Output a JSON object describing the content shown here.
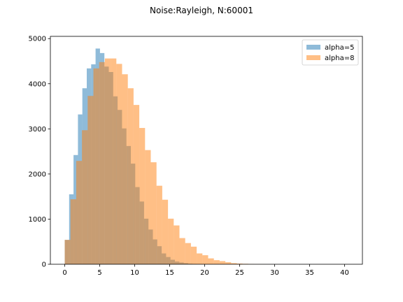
{
  "chart_data": {
    "type": "histogram",
    "title": "Noise:Rayleigh, N:60001",
    "xlabel": "",
    "ylabel": "",
    "xlim": [
      -2.05,
      42.55
    ],
    "ylim": [
      0,
      5050
    ],
    "xticks": [
      0,
      5,
      10,
      15,
      20,
      25,
      30,
      35,
      40
    ],
    "yticks": [
      0,
      1000,
      2000,
      3000,
      4000,
      5000
    ],
    "legend_position": "top-right",
    "grid": false,
    "series": [
      {
        "name": "alpha=5",
        "color": "#1f77b4",
        "opacity": 0.5,
        "bin_start": 0,
        "bin_width": 0.63,
        "counts": [
          540,
          1550,
          2420,
          3320,
          3900,
          4340,
          4430,
          4780,
          4680,
          4380,
          4260,
          3720,
          3420,
          3010,
          2620,
          2230,
          1710,
          1390,
          1010,
          770,
          550,
          400,
          240,
          160,
          100,
          60,
          40,
          25,
          12,
          8,
          5,
          3,
          2,
          1,
          1,
          0,
          0,
          0,
          0,
          0,
          0,
          0,
          0,
          0,
          0,
          0,
          0,
          0,
          0,
          1
        ]
      },
      {
        "name": "alpha=8",
        "color": "#ff7f0e",
        "opacity": 0.5,
        "bin_start": 0,
        "bin_width": 0.82,
        "counts": [
          540,
          1440,
          2290,
          2970,
          3730,
          4340,
          4480,
          4560,
          4560,
          4440,
          4210,
          3900,
          3530,
          3020,
          2530,
          2260,
          1740,
          1430,
          1010,
          860,
          580,
          470,
          390,
          240,
          200,
          130,
          90,
          70,
          45,
          25,
          15,
          10,
          5,
          3,
          2,
          1,
          1,
          0,
          0,
          0,
          0,
          0,
          0,
          0,
          0,
          0,
          0,
          0,
          0,
          1
        ]
      }
    ]
  }
}
